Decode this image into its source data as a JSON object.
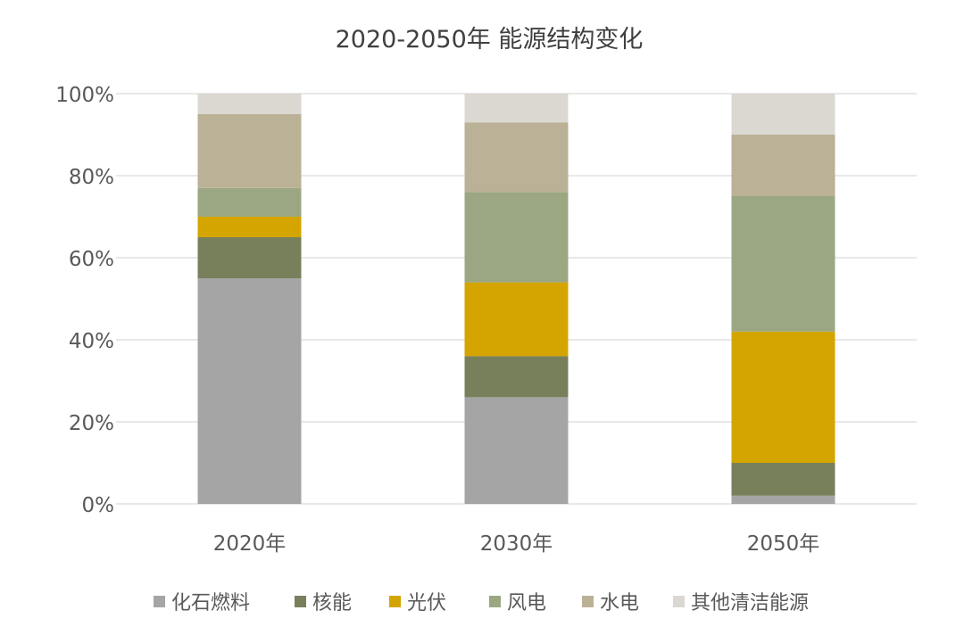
{
  "chart_data": {
    "type": "bar",
    "stacked": true,
    "title": "2020-2050年 能源结构变化",
    "categories": [
      "2020年",
      "2030年",
      "2050年"
    ],
    "ylim": [
      0,
      100
    ],
    "y_ticks": [
      "0%",
      "20%",
      "40%",
      "60%",
      "80%",
      "100%"
    ],
    "y_tick_values": [
      0,
      20,
      40,
      60,
      80,
      100
    ],
    "grid": true,
    "legend_position": "bottom",
    "series": [
      {
        "name": "化石燃料",
        "color": "#a5a5a5",
        "values": [
          55,
          26,
          2
        ]
      },
      {
        "name": "核能",
        "color": "#77805b",
        "values": [
          10,
          10,
          8
        ]
      },
      {
        "name": "光伏",
        "color": "#d4a500",
        "values": [
          5,
          18,
          32
        ]
      },
      {
        "name": "风电",
        "color": "#9ba783",
        "values": [
          7,
          22,
          33
        ]
      },
      {
        "name": "水电",
        "color": "#bab196",
        "values": [
          18,
          17,
          15
        ]
      },
      {
        "name": "其他清洁能源",
        "color": "#dbd8d2",
        "values": [
          5,
          7,
          10
        ]
      }
    ]
  }
}
